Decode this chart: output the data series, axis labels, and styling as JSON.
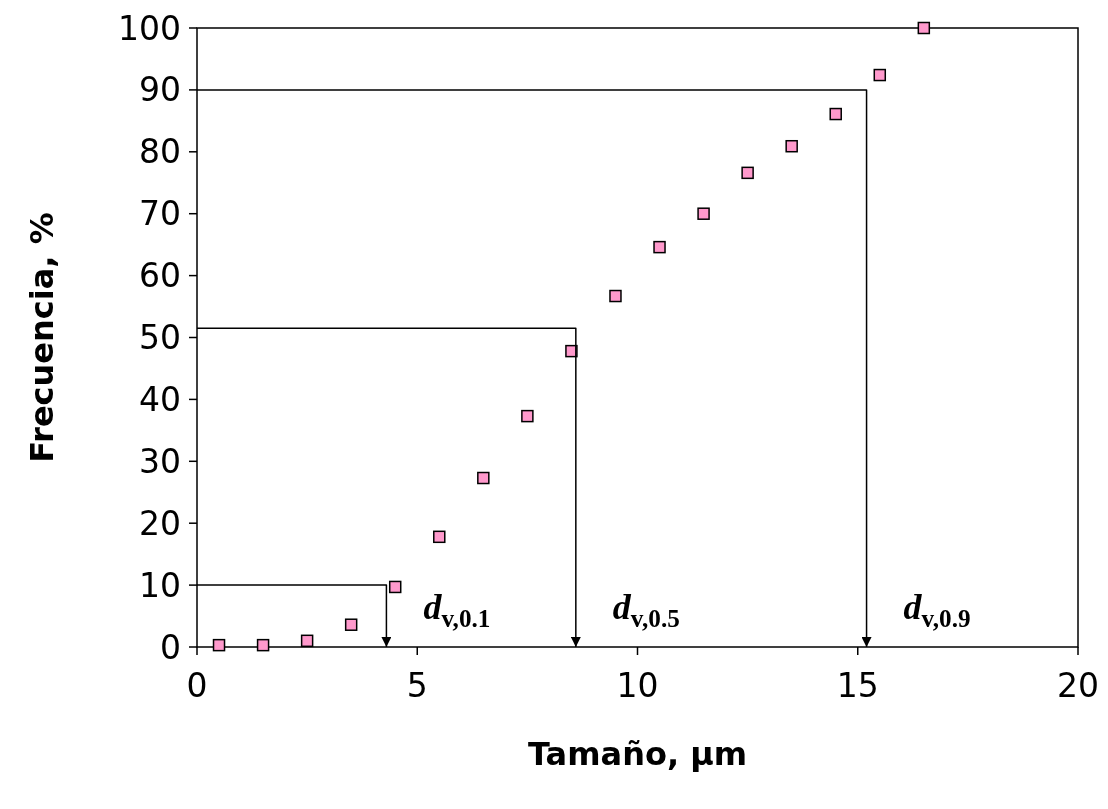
{
  "chart_data": {
    "type": "scatter",
    "xlabel": "Tamaño, μm",
    "ylabel": "Frecuencia, %",
    "xlim": [
      0,
      20
    ],
    "xticks": [
      0,
      5,
      10,
      15,
      20
    ],
    "ylim": [
      0,
      100
    ],
    "yticks": [
      0,
      10,
      20,
      30,
      40,
      50,
      60,
      70,
      80,
      90,
      100
    ],
    "grid": false,
    "series": [
      {
        "marker": "square",
        "color": "#ff99cc",
        "x": [
          0.5,
          1.5,
          2.5,
          3.5,
          4.5,
          5.5,
          6.5,
          7.5,
          8.5,
          9.5,
          10.5,
          11.5,
          12.5,
          13.5,
          14.5,
          15.5,
          16.5
        ],
        "values": [
          0.3,
          0.3,
          1,
          3.6,
          9.7,
          17.8,
          27.3,
          37.3,
          47.8,
          56.7,
          64.6,
          70,
          76.6,
          80.9,
          86.1,
          92.4,
          100
        ]
      },
      {
        "type": "line",
        "color": "#000000",
        "x": [
          0,
          4.3,
          4.3
        ],
        "values": [
          10,
          10,
          0
        ]
      },
      {
        "type": "line",
        "color": "#000000",
        "x": [
          0,
          8.6,
          8.6
        ],
        "values": [
          51.5,
          51.5,
          0
        ]
      },
      {
        "type": "line",
        "color": "#000000",
        "x": [
          0,
          15.2,
          15.2
        ],
        "values": [
          90,
          90,
          0
        ]
      }
    ],
    "annotations": [
      "d$_{v,0.1}$",
      "d$_{v,0.5}$",
      "d$_{v,0.9}$"
    ]
  }
}
